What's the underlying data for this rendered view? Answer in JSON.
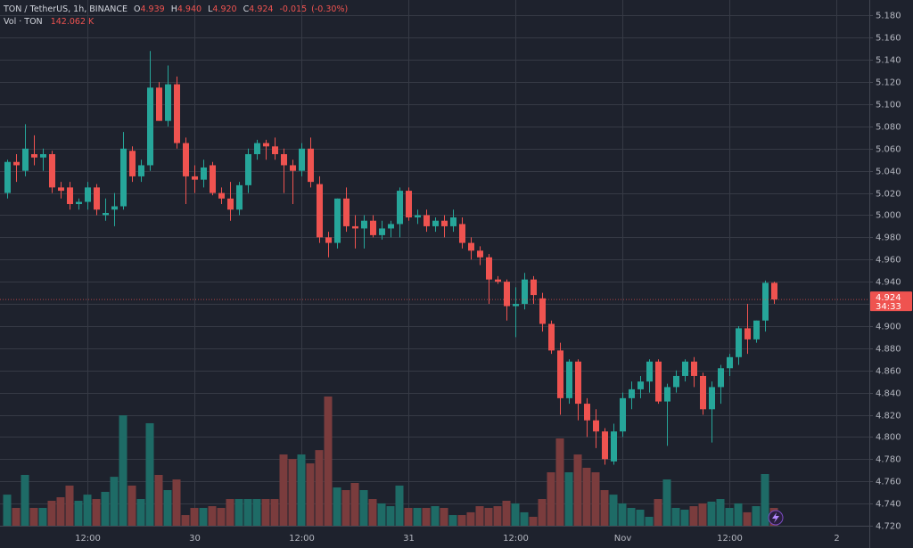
{
  "header": {
    "symbol": "TON / TetherUS, 1h, BINANCE",
    "o_key": "O",
    "o": "4.939",
    "h_key": "H",
    "h": "4.940",
    "l_key": "L",
    "l": "4.920",
    "c_key": "C",
    "c": "4.924",
    "change": "-0.015",
    "change_pct": "(-0.30%)",
    "vol_name": "Vol · TON",
    "vol": "142.062 K"
  },
  "chart_data": {
    "type": "candlestick",
    "up_color": "#26a69a",
    "down_color": "#ef5350",
    "volume_up_color": "#1e6b66",
    "volume_down_color": "#7a3c3d",
    "grid": true,
    "categories": [
      null,
      null,
      null,
      null,
      null,
      null,
      null,
      null,
      null,
      "12:00",
      null,
      null,
      null,
      null,
      null,
      null,
      null,
      null,
      null,
      null,
      null,
      "30",
      null,
      null,
      null,
      null,
      null,
      null,
      null,
      null,
      null,
      null,
      null,
      "12:00",
      null,
      null,
      null,
      null,
      null,
      null,
      null,
      null,
      null,
      null,
      null,
      "31",
      null,
      null,
      null,
      null,
      null,
      null,
      null,
      null,
      null,
      null,
      null,
      "12:00",
      null,
      null,
      null,
      null,
      null,
      null,
      null,
      null,
      null,
      null,
      null,
      "Nov",
      null,
      null,
      null,
      null,
      null,
      null,
      null,
      null,
      null,
      null,
      null,
      "12:00",
      null,
      null,
      null,
      null,
      null,
      null,
      null,
      null,
      null,
      null,
      null,
      "2",
      null,
      null,
      null
    ],
    "open": [
      5.02,
      5.048,
      5.04,
      5.055,
      5.052,
      5.055,
      5.025,
      5.025,
      5.01,
      5.012,
      5.025,
      5.0,
      5.005,
      5.008,
      5.058,
      5.035,
      5.045,
      5.115,
      5.085,
      5.118,
      5.065,
      5.035,
      5.032,
      5.045,
      5.02,
      5.015,
      5.005,
      5.027,
      5.055,
      5.065,
      5.062,
      5.055,
      5.045,
      5.04,
      5.06,
      5.028,
      4.98,
      4.975,
      5.015,
      4.99,
      4.988,
      4.995,
      4.982,
      4.988,
      4.992,
      5.022,
      4.998,
      5.0,
      4.99,
      4.995,
      4.99,
      4.992,
      4.975,
      4.968,
      4.962,
      4.942,
      4.94,
      4.918,
      4.92,
      4.942,
      4.925,
      4.902,
      4.878,
      4.835,
      4.868,
      4.83,
      4.815,
      4.805,
      4.778,
      4.805,
      4.835,
      4.843,
      4.85,
      4.868,
      4.832,
      4.845,
      4.855,
      4.868,
      4.855,
      4.825,
      4.845,
      4.862,
      4.872,
      4.898,
      4.888,
      4.905,
      4.939,
      null,
      null,
      null,
      null,
      null,
      null,
      null,
      null,
      null,
      null
    ],
    "high": [
      5.05,
      5.055,
      5.082,
      5.072,
      5.06,
      5.058,
      5.03,
      5.03,
      5.015,
      5.03,
      5.028,
      5.015,
      5.02,
      5.075,
      5.062,
      5.05,
      5.148,
      5.12,
      5.135,
      5.125,
      5.07,
      5.045,
      5.05,
      5.048,
      5.025,
      5.03,
      5.03,
      5.06,
      5.068,
      5.068,
      5.07,
      5.06,
      5.05,
      5.065,
      5.07,
      5.035,
      4.985,
      5.015,
      5.025,
      5.0,
      5.0,
      5.0,
      4.995,
      4.995,
      5.025,
      5.025,
      5.005,
      5.005,
      4.998,
      5.0,
      5.005,
      4.998,
      4.98,
      4.972,
      4.965,
      4.945,
      4.942,
      4.935,
      4.948,
      4.945,
      4.93,
      4.905,
      4.885,
      4.87,
      4.87,
      4.835,
      4.825,
      4.808,
      4.812,
      4.84,
      4.85,
      4.855,
      4.87,
      4.87,
      4.848,
      4.86,
      4.87,
      4.872,
      4.858,
      4.85,
      4.865,
      4.875,
      4.9,
      4.92,
      4.905,
      4.941,
      4.94,
      null,
      null,
      null,
      null,
      null,
      null,
      null,
      null,
      null,
      null
    ],
    "low": [
      5.015,
      5.03,
      5.035,
      5.045,
      5.04,
      5.02,
      5.015,
      5.005,
      5.005,
      5.005,
      5.0,
      4.995,
      4.99,
      5.005,
      5.03,
      5.03,
      5.04,
      5.085,
      5.08,
      5.06,
      5.01,
      5.02,
      5.025,
      5.018,
      5.01,
      4.995,
      5.0,
      5.02,
      5.05,
      5.05,
      5.05,
      5.02,
      5.01,
      5.035,
      5.025,
      4.975,
      4.962,
      4.97,
      4.985,
      4.97,
      4.97,
      4.98,
      4.978,
      4.98,
      4.98,
      4.995,
      4.992,
      4.985,
      4.985,
      4.98,
      4.985,
      4.97,
      4.96,
      4.955,
      4.92,
      4.938,
      4.905,
      4.89,
      4.915,
      4.92,
      4.895,
      4.875,
      4.82,
      4.83,
      4.815,
      4.8,
      4.79,
      4.775,
      4.775,
      4.8,
      4.825,
      4.835,
      4.84,
      4.83,
      4.792,
      4.84,
      4.85,
      4.845,
      4.82,
      4.795,
      4.83,
      4.855,
      4.865,
      4.875,
      4.885,
      4.895,
      4.92,
      null,
      null,
      null,
      null,
      null,
      null,
      null,
      null,
      null,
      null
    ],
    "close": [
      5.048,
      5.045,
      5.06,
      5.052,
      5.055,
      5.025,
      5.022,
      5.01,
      5.012,
      5.025,
      5.005,
      5.002,
      5.008,
      5.06,
      5.035,
      5.045,
      5.115,
      5.085,
      5.118,
      5.065,
      5.035,
      5.032,
      5.043,
      5.02,
      5.015,
      5.005,
      5.027,
      5.055,
      5.065,
      5.062,
      5.055,
      5.045,
      5.04,
      5.06,
      5.03,
      4.98,
      4.975,
      5.015,
      4.99,
      4.988,
      4.995,
      4.982,
      4.988,
      4.992,
      5.022,
      4.998,
      5.0,
      4.99,
      4.995,
      4.99,
      4.998,
      4.975,
      4.968,
      4.962,
      4.942,
      4.94,
      4.918,
      4.92,
      4.942,
      4.928,
      4.902,
      4.878,
      4.835,
      4.868,
      4.83,
      4.815,
      4.805,
      4.78,
      4.805,
      4.835,
      4.843,
      4.85,
      4.868,
      4.832,
      4.845,
      4.855,
      4.868,
      4.855,
      4.825,
      4.845,
      4.862,
      4.872,
      4.898,
      4.888,
      4.905,
      4.939,
      4.924,
      null,
      null,
      null,
      null,
      null,
      null,
      null,
      null,
      null,
      null
    ],
    "volume": [
      248,
      142,
      405,
      142,
      142,
      199,
      227,
      320,
      199,
      248,
      213,
      270,
      390,
      880,
      320,
      213,
      817,
      405,
      284,
      369,
      85,
      142,
      142,
      156,
      142,
      213,
      213,
      213,
      213,
      213,
      213,
      568,
      532,
      568,
      497,
      603,
      1030,
      305,
      284,
      341,
      284,
      213,
      178,
      156,
      320,
      142,
      142,
      142,
      156,
      142,
      85,
      85,
      107,
      156,
      142,
      156,
      199,
      178,
      107,
      71,
      213,
      426,
      696,
      426,
      568,
      462,
      426,
      284,
      248,
      178,
      142,
      128,
      71,
      213,
      369,
      142,
      128,
      156,
      178,
      192,
      213,
      142,
      178,
      107,
      156,
      412,
      142.062,
      null,
      null,
      null,
      null,
      null,
      null,
      null,
      null,
      null,
      null
    ],
    "ylim": [
      4.72,
      5.194
    ],
    "yticks": [
      {
        "value": 4.72,
        "label": "4.720"
      },
      {
        "value": 4.74,
        "label": "4.740"
      },
      {
        "value": 4.76,
        "label": "4.760"
      },
      {
        "value": 4.78,
        "label": "4.780"
      },
      {
        "value": 4.8,
        "label": "4.800"
      },
      {
        "value": 4.82,
        "label": "4.820"
      },
      {
        "value": 4.84,
        "label": "4.840"
      },
      {
        "value": 4.86,
        "label": "4.860"
      },
      {
        "value": 4.88,
        "label": "4.880"
      },
      {
        "value": 4.9,
        "label": "4.900"
      },
      {
        "value": 4.92,
        "label": "4.920"
      },
      {
        "value": 4.94,
        "label": "4.940"
      },
      {
        "value": 4.96,
        "label": "4.960"
      },
      {
        "value": 4.98,
        "label": "4.980"
      },
      {
        "value": 5.0,
        "label": "5.000"
      },
      {
        "value": 5.02,
        "label": "5.020"
      },
      {
        "value": 5.04,
        "label": "5.040"
      },
      {
        "value": 5.06,
        "label": "5.060"
      },
      {
        "value": 5.08,
        "label": "5.080"
      },
      {
        "value": 5.1,
        "label": "5.100"
      },
      {
        "value": 5.12,
        "label": "5.120"
      },
      {
        "value": 5.14,
        "label": "5.140"
      },
      {
        "value": 5.16,
        "label": "5.160"
      },
      {
        "value": 5.18,
        "label": "5.180"
      }
    ],
    "countdown": "34:33"
  }
}
